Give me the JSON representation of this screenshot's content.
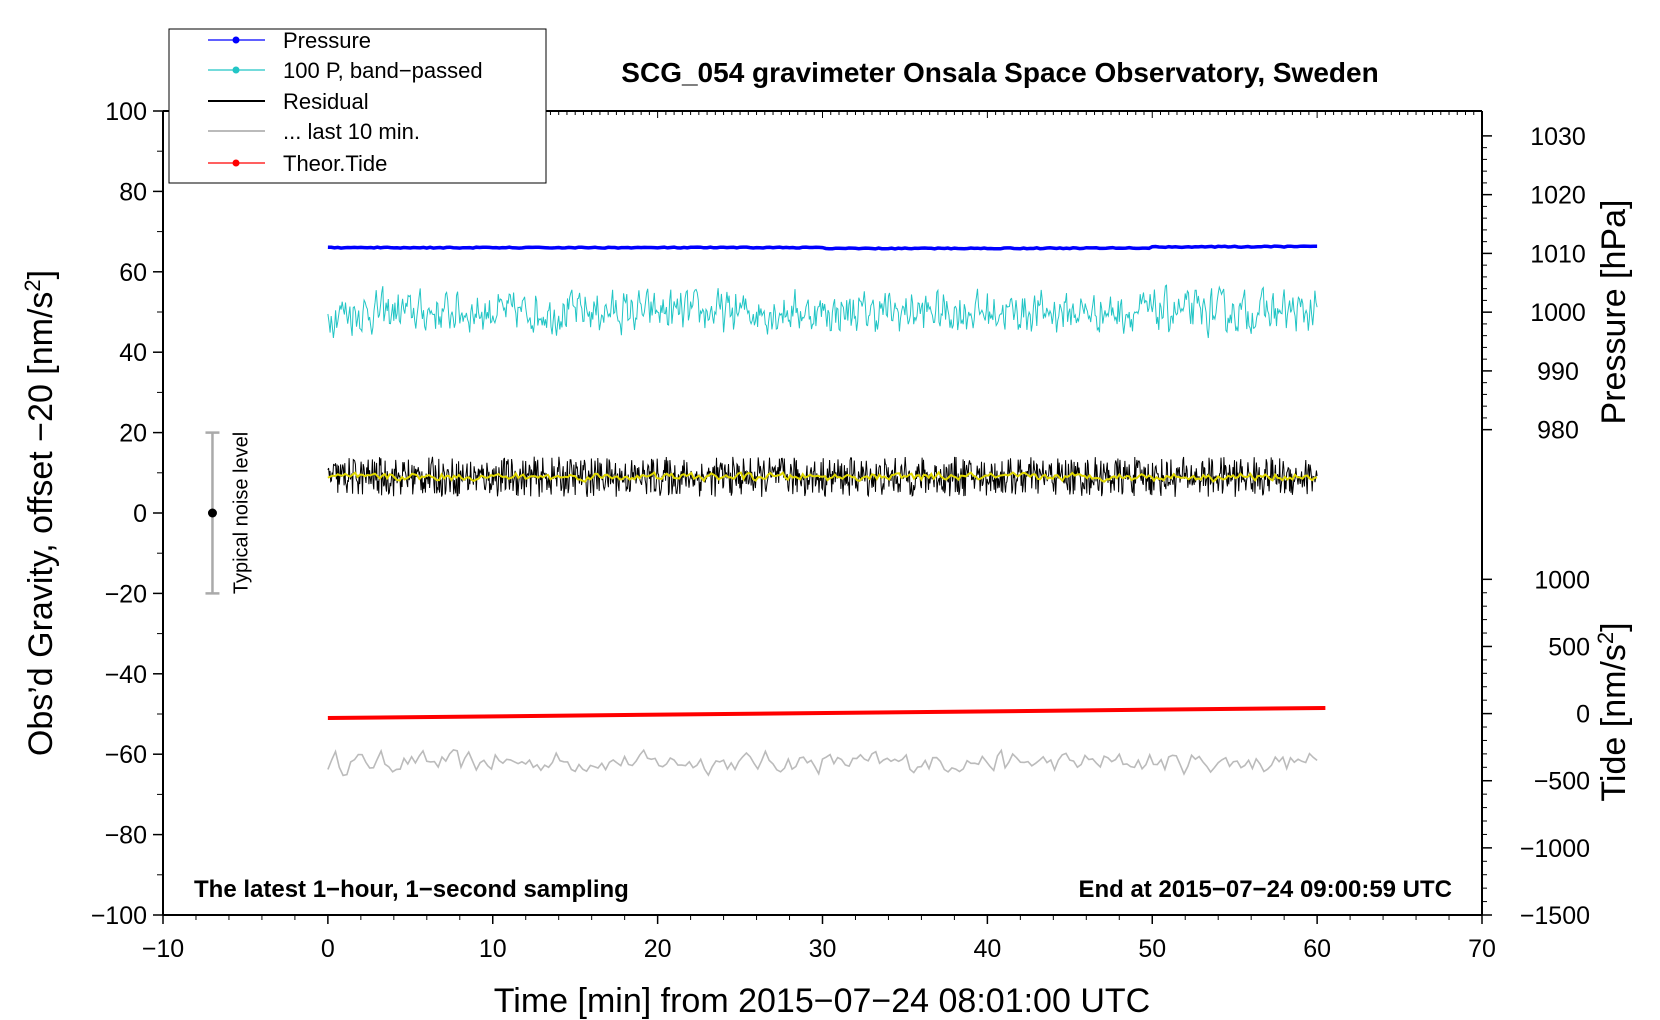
{
  "chart_data": {
    "type": "line",
    "title": "SCG_054 gravimeter Onsala Space Observatory, Sweden",
    "xlabel": "Time [min] from 2015−07−24 08:01:00 UTC",
    "ylabel_left": "Obs’d Gravity, offset −20 [nm/s",
    "ylabel_right_pressure": "Pressure [hPa]",
    "ylabel_right_tide": "Tide [nm/s",
    "superscript": "2",
    "close_bracket": "]",
    "xlim": [
      -10,
      70
    ],
    "ylim": [
      -100,
      100
    ],
    "xticks": [
      -10,
      0,
      10,
      20,
      30,
      40,
      50,
      60,
      70
    ],
    "xtick_labels": [
      "−10",
      "0",
      "10",
      "20",
      "30",
      "40",
      "50",
      "60",
      "70"
    ],
    "yticks": [
      -100,
      -80,
      -60,
      -40,
      -20,
      0,
      20,
      40,
      60,
      80,
      100
    ],
    "ytick_labels": [
      "−100",
      "−80",
      "−60",
      "−40",
      "−20",
      "0",
      "20",
      "40",
      "60",
      "80",
      "100"
    ],
    "pressure_axis": {
      "ticks": [
        980,
        990,
        1000,
        1010,
        1020,
        1030
      ],
      "tick_labels": [
        "980",
        "990",
        "1000",
        "1010",
        "1020",
        "1030"
      ],
      "left_value_at": [
        [
          979.5,
          20
        ],
        [
          1031.5,
          96
        ]
      ]
    },
    "tide_axis": {
      "ticks": [
        -1500,
        -1000,
        -500,
        0,
        500,
        1000
      ],
      "tick_labels": [
        "−1500",
        "−1000",
        "−500",
        "0",
        "500",
        "1000"
      ],
      "left_value_at": [
        [
          -1500,
          -100
        ],
        [
          1000,
          -16.5
        ]
      ]
    },
    "series": [
      {
        "name": "Pressure",
        "color": "#0000ff",
        "x_range": [
          0,
          60
        ],
        "level": 66.0,
        "end_level": 66.3,
        "noise": 0.25,
        "marker": true
      },
      {
        "name": "100 P, band−passed",
        "color": "#22c5c5",
        "x_range": [
          0,
          60
        ],
        "level": 50,
        "noise": 6,
        "marker": true
      },
      {
        "name": "Residual",
        "color": "#000000",
        "x_range": [
          0,
          60
        ],
        "level": 9,
        "noise": 5,
        "marker": false
      },
      {
        "name": "... last 10 min.",
        "color": "#bbbbbb",
        "x_range": [
          0,
          60
        ],
        "level": -62,
        "noise": 3,
        "marker": false
      },
      {
        "name": "Theor.Tide",
        "color": "#ff0000",
        "x_range": [
          0,
          60.5
        ],
        "start": -51,
        "end": -48.5,
        "marker": true
      }
    ],
    "smoothed_residual": {
      "color": "#e0d800",
      "level": 9
    },
    "noise_bar": {
      "label": "Typical noise level",
      "x": -7,
      "y": 0,
      "range": [
        -20,
        20
      ]
    },
    "annotation_left": "The latest 1−hour, 1−second sampling",
    "annotation_right": "End at 2015−07−24 09:00:59 UTC",
    "legend_position": "top-left"
  }
}
